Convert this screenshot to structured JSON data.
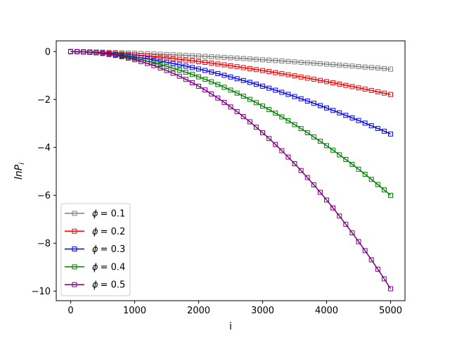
{
  "chart_data": {
    "type": "line",
    "xlabel": "i",
    "ylabel": "lnP",
    "ylabel_subscript": "i",
    "xlim": [
      -225,
      5225
    ],
    "ylim": [
      -10.4,
      0.45
    ],
    "xticks": [
      0,
      1000,
      2000,
      3000,
      4000,
      5000
    ],
    "xtick_labels": [
      "0",
      "1000",
      "2000",
      "3000",
      "4000",
      "5000"
    ],
    "yticks": [
      0,
      -2,
      -4,
      -6,
      -8,
      -10
    ],
    "ytick_labels": [
      "0",
      "−2",
      "−4",
      "−6",
      "−8",
      "−10"
    ],
    "grid": false,
    "legend_placement": "lower-left",
    "marker": "square",
    "x_start": 0,
    "x_step": 100,
    "x_end": 5000,
    "series": [
      {
        "name_symbol": "ϕ",
        "name_value": "= 0.1",
        "color": "#808080",
        "end_value": -0.73,
        "exponent": 1.5
      },
      {
        "name_symbol": "ϕ",
        "name_value": "= 0.2",
        "color": "#ff0000",
        "end_value": -1.79,
        "exponent": 1.6
      },
      {
        "name_symbol": "ϕ",
        "name_value": "= 0.3",
        "color": "#0000ff",
        "end_value": -3.44,
        "exponent": 1.7
      },
      {
        "name_symbol": "ϕ",
        "name_value": "= 0.4",
        "color": "#008000",
        "end_value": -6.0,
        "exponent": 1.9
      },
      {
        "name_symbol": "ϕ",
        "name_value": "= 0.5",
        "color": "#800080",
        "end_value": -9.9,
        "exponent": 2.1
      }
    ]
  }
}
